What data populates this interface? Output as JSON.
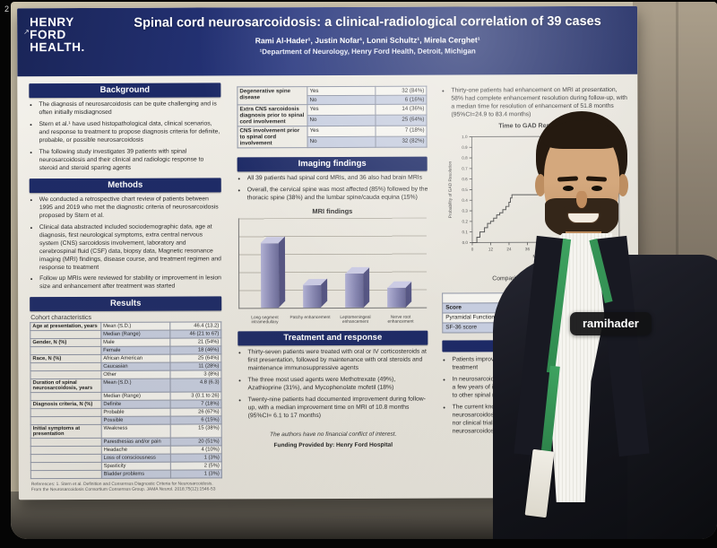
{
  "photo": {
    "tag_label": "ramihader",
    "corner_mark": "2"
  },
  "poster": {
    "logo": {
      "mark": "↗",
      "line1": "HENRY",
      "line2": "FORD",
      "line3": "HEALTH."
    },
    "title": "Spinal cord neurosarcoidosis: a clinical-radiological correlation of 39 cases",
    "authors": "Rami Al-Hader¹, Justin Nofar¹, Lonni Schultz¹, Mirela Cerghet¹",
    "affiliation": "¹Department of Neurology, Henry Ford Health, Detroit, Michigan",
    "background": {
      "header": "Background",
      "bullets": [
        "The diagnosis of neurosarcoidosis can be quite challenging and is often initially misdiagnosed",
        "Stern et al.¹ have used histopathological data, clinical scenarios, and response to treatment to propose diagnosis criteria for definite, probable, or possible neurosarcoidosis",
        "The following study investigates 39 patients with spinal neurosarcoidosis and their clinical and radiologic response to steroid and steroid sparing agents"
      ]
    },
    "methods": {
      "header": "Methods",
      "bullets": [
        "We conducted a retrospective chart review of patients between 1995 and 2019 who met the diagnostic criteria of neurosarcoidosis proposed by Stern et al.",
        "Clinical data abstracted included sociodemographic data, age at diagnosis, first neurological symptoms, extra central nervous system (CNS) sarcoidosis involvement, laboratory and cerebrospinal fluid (CSF) data, biopsy data, Magnetic resonance imaging (MRI) findings, disease course, and treatment regimen and response to treatment",
        "Follow up MRIs were reviewed for stability or improvement in lesion size and enhancement after treatment was started"
      ]
    },
    "results": {
      "header": "Results",
      "caption": "Cohort characteristics",
      "table_rows": [
        {
          "c1": "Age at presentation, years",
          "c2": "Mean (S.D.)",
          "c3": "46.4 (13.2)"
        },
        {
          "c1": "",
          "c2": "Median (Range)",
          "c3": "46 (21 to 67)"
        },
        {
          "c1": "Gender, N (%)",
          "c2": "Male",
          "c3": "21 (54%)"
        },
        {
          "c1": "",
          "c2": "Female",
          "c3": "18 (46%)"
        },
        {
          "c1": "Race, N (%)",
          "c2": "African American",
          "c3": "25 (64%)"
        },
        {
          "c1": "",
          "c2": "Caucasian",
          "c3": "11 (28%)"
        },
        {
          "c1": "",
          "c2": "Other",
          "c3": "3 (8%)"
        },
        {
          "c1": "Duration of spinal neurosarcoidosis, years",
          "c2": "Mean (S.D.)",
          "c3": "4.8 (6.3)"
        },
        {
          "c1": "",
          "c2": "Median (Range)",
          "c3": "3 (0.1 to 26)"
        },
        {
          "c1": "Diagnosis criteria, N (%)",
          "c2": "Definite",
          "c3": "7 (18%)"
        },
        {
          "c1": "",
          "c2": "Probable",
          "c3": "26 (67%)"
        },
        {
          "c1": "",
          "c2": "Possible",
          "c3": "6 (15%)"
        },
        {
          "c1": "Initial symptoms at presentation",
          "c2": "Weakness",
          "c3": "15 (38%)"
        },
        {
          "c1": "",
          "c2": "Paresthesias and/or pain",
          "c3": "20 (51%)"
        },
        {
          "c1": "",
          "c2": "Headache",
          "c3": "4 (10%)"
        },
        {
          "c1": "",
          "c2": "Loss of consciousness",
          "c3": "1 (3%)"
        },
        {
          "c1": "",
          "c2": "Spasticity",
          "c3": "2 (5%)"
        },
        {
          "c1": "",
          "c2": "Bladder problems",
          "c3": "1 (3%)"
        }
      ],
      "references": "References: 1. Stern et al. Definition and Consensus Diagnostic Criteria for Neurosarcoidosis. From the Neurosarcoidosis Consortium Consensus Group. JAMA Neurol. 2018;75(12):1546-53"
    },
    "mri_table": {
      "groups": [
        {
          "label": "Degenerative spine disease",
          "rows": [
            [
              "Yes",
              "32 (84%)"
            ],
            [
              "No",
              "6 (16%)"
            ]
          ]
        },
        {
          "label": "Extra CNS sarcoidosis diagnosis prior to spinal cord involvement",
          "rows": [
            [
              "Yes",
              "14 (36%)"
            ],
            [
              "No",
              "25 (64%)"
            ]
          ]
        },
        {
          "label": "CNS involvement prior to spinal cord involvement",
          "rows": [
            [
              "Yes",
              "7 (18%)"
            ],
            [
              "No",
              "32 (82%)"
            ]
          ]
        }
      ]
    },
    "imaging": {
      "header": "Imaging findings",
      "bullets": [
        "All 39 patients had spinal cord MRIs, and 36 also had brain MRIs",
        "Overall, the cervical spine was most affected (85%) followed by the thoracic spine (38%) and the lumbar spine/cauda equina (15%)"
      ]
    },
    "treatment": {
      "header": "Treatment and response",
      "bullets": [
        "Thirty-seven patients were treated with oral or IV corticosteroids at first presentation, followed by maintenance with oral steroids and maintenance immunosuppressive agents",
        "The three most used agents were Methotrexate (49%), Azathioprine (31%), and Mycophenolate mofetil (18%)",
        "Twenty-nine patients had documented improvement during follow-up, with a median improvement time on MRI of 10.8 months (95%CI= 6.1 to 17 months)"
      ]
    },
    "footer": {
      "line1": "The authors have no financial conflict of interest.",
      "line2": "Funding Provided by: Henry Ford Hospital"
    },
    "right_column": {
      "top_bullet": "Thirty-one patients had enhancement on MRI at presentation, 58% had complete enhancement resolution during follow-up, with a median time for resolution of enhancement of 51.8 months (95%CI=24.9 to 83.4 months)",
      "comparison": {
        "caption_line1": "Comparison between pyramidal",
        "caption_line2": "initial and la",
        "header_top": [
          "",
          "",
          "Presenting"
        ],
        "header": [
          "Score",
          "N",
          "Mean (SD)"
        ],
        "rows": [
          [
            "Pyramidal Function",
            "33",
            "2.48 (1.23)"
          ],
          [
            "SF-36 score",
            "30",
            "1.63 (0.9)"
          ]
        ]
      },
      "conclusions": {
        "bullets": [
          [
            "Patients improved cl",
            "treatment"
          ],
          [
            "In neurosarcoidosi",
            "a few years of imm",
            "to other spinal ne"
          ],
          [
            "The current know",
            "neurosarcoidosis i",
            "nor clinical trials o",
            "neurosarcoidosis"
          ]
        ]
      }
    }
  },
  "chart_data": [
    {
      "id": "mri_findings",
      "type": "bar",
      "title": "MRI findings",
      "categories": [
        "Long segment intramedullary",
        "Patchy enhancement",
        "Leptomeningeal enhancement",
        "Nerve root enhancement"
      ],
      "values": [
        80,
        28,
        42,
        24
      ],
      "xlabel": "",
      "ylabel": "",
      "ylim": [
        0,
        100
      ],
      "grid": true,
      "style": "3d-bars"
    },
    {
      "id": "time_to_gad_resolution",
      "type": "line",
      "subtype": "kaplan-meier-step",
      "title": "Time to GAD Resolution",
      "xlabel": "Months Since",
      "ylabel": "Probability of GAD Resolution",
      "xlim": [
        0,
        96
      ],
      "ylim": [
        0,
        1
      ],
      "x_ticks": [
        0,
        12,
        24,
        36,
        48,
        60,
        72,
        84,
        96
      ],
      "y_ticks": [
        "0.0",
        "0.1",
        "0.2",
        "0.3",
        "0.4",
        "0.5",
        "0.6",
        "0.7",
        "0.8",
        "0.9",
        "1.0"
      ],
      "points": [
        [
          0,
          0
        ],
        [
          3,
          0.05
        ],
        [
          5,
          0.1
        ],
        [
          8,
          0.14
        ],
        [
          10,
          0.18
        ],
        [
          12,
          0.2
        ],
        [
          14,
          0.23
        ],
        [
          16,
          0.26
        ],
        [
          18,
          0.28
        ],
        [
          20,
          0.31
        ],
        [
          22,
          0.34
        ],
        [
          24,
          0.38
        ],
        [
          25,
          0.42
        ],
        [
          26,
          0.45
        ],
        [
          44,
          0.48
        ],
        [
          46,
          0.52
        ],
        [
          48,
          0.55
        ],
        [
          58,
          0.58
        ],
        [
          60,
          0.62
        ],
        [
          62,
          0.65
        ],
        [
          74,
          0.68
        ],
        [
          78,
          0.72
        ],
        [
          80,
          0.75
        ],
        [
          84,
          0.78
        ],
        [
          88,
          0.8
        ],
        [
          96,
          0.8
        ]
      ]
    }
  ]
}
